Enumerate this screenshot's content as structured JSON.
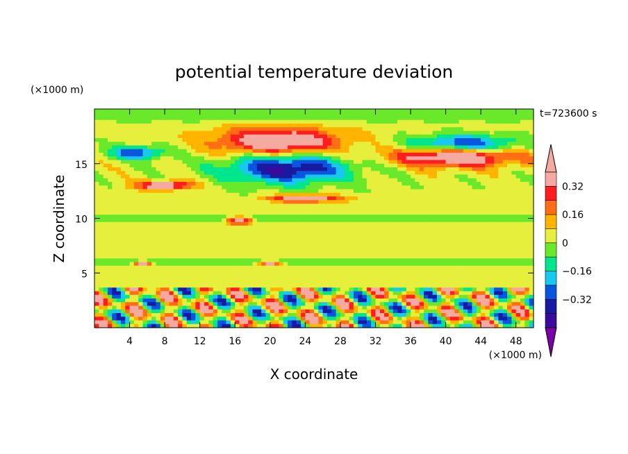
{
  "chart_data": {
    "type": "heatmap",
    "title": "potential temperature deviation",
    "xlabel": "X coordinate",
    "ylabel": "Z coordinate",
    "x_unit": "(×1000 m)",
    "y_unit": "(×1000 m)",
    "time_label": "t=723600 s",
    "xlim": [
      0,
      50
    ],
    "ylim": [
      0,
      20
    ],
    "x_ticks": [
      4,
      8,
      12,
      16,
      20,
      24,
      28,
      32,
      36,
      40,
      44,
      48
    ],
    "y_ticks": [
      5,
      10,
      15
    ],
    "colorbar": {
      "levels": [
        -0.48,
        -0.4,
        -0.32,
        -0.24,
        -0.16,
        -0.08,
        0,
        0.08,
        0.16,
        0.24,
        0.32,
        0.4
      ],
      "colors": [
        "#7a00a8",
        "#3a0a9a",
        "#1a1aa0",
        "#0a55e0",
        "#18c8f0",
        "#00e68c",
        "#6ae82a",
        "#e6f03c",
        "#ffb400",
        "#ff6e14",
        "#ff1e1e",
        "#f4aaa0",
        "#f4aaa0"
      ],
      "tick_labels": [
        "0.32",
        "0.16",
        "0",
        "−0.16",
        "−0.32"
      ],
      "tick_values": [
        0.32,
        0.16,
        0,
        -0.16,
        -0.32
      ]
    },
    "field_features": [
      {
        "x": 21,
        "z": 17.0,
        "rx": 7,
        "rz": 1.3,
        "value": 0.45
      },
      {
        "x": 22,
        "z": 14.6,
        "rx": 7,
        "rz": 1.4,
        "value": -0.45
      },
      {
        "x": 41,
        "z": 15.6,
        "rx": 7,
        "rz": 0.9,
        "value": 0.45
      },
      {
        "x": 42,
        "z": 16.8,
        "rx": 6,
        "rz": 0.8,
        "value": -0.38
      },
      {
        "x": 5,
        "z": 16.0,
        "rx": 3,
        "rz": 0.6,
        "value": -0.35
      },
      {
        "x": 8,
        "z": 13.0,
        "rx": 3,
        "rz": 0.4,
        "value": 0.45
      },
      {
        "x": 24,
        "z": 11.8,
        "rx": 4,
        "rz": 0.3,
        "value": 0.45
      },
      {
        "x": 16.5,
        "z": 9.8,
        "rx": 1.5,
        "rz": 0.35,
        "value": 0.45
      },
      {
        "x": 5.5,
        "z": 5.9,
        "rx": 0.8,
        "rz": 0.25,
        "value": 0.45
      },
      {
        "x": 20,
        "z": 5.9,
        "rx": 1.0,
        "rz": 0.25,
        "value": 0.45
      }
    ]
  }
}
